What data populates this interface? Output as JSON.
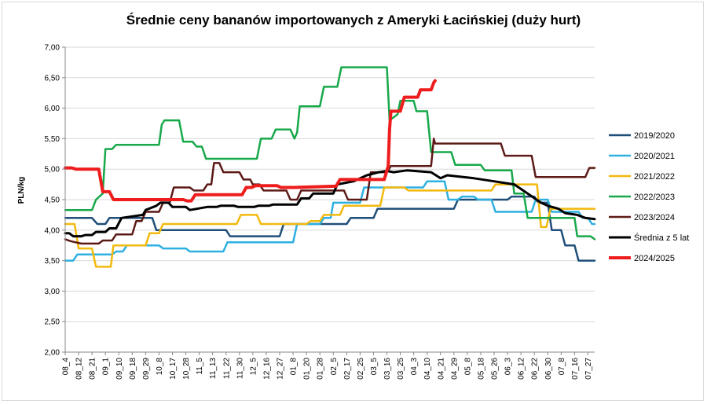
{
  "chart_data": {
    "type": "line",
    "title": "Średnie ceny bananów importowanych z Ameryki Łacińskiej  (duży hurt)",
    "ylabel": "PLN/kg",
    "xlabel": "",
    "ylim": [
      2.0,
      7.0
    ],
    "y_ticks": [
      "2,00",
      "2,50",
      "3,00",
      "3,50",
      "4,00",
      "4,50",
      "5,00",
      "5,50",
      "6,00",
      "6,50",
      "7,00"
    ],
    "x_tick_labels": [
      "08_4",
      "08_12",
      "08_21",
      "09_1",
      "09_10",
      "09_18",
      "09_29",
      "10_8",
      "10_17",
      "10_28",
      "11_5",
      "11_13",
      "11_22",
      "11_30",
      "12_5",
      "12_16",
      "12_27",
      "01_8",
      "01_20",
      "01_28",
      "02_5",
      "02_17",
      "02_25",
      "03_5",
      "03_16",
      "03_25",
      "04_3",
      "04_10",
      "04_21",
      "04_29",
      "05_8",
      "05_18",
      "05_26",
      "06_3",
      "06_12",
      "06_22",
      "06_30",
      "07_8",
      "07_16",
      "07_27"
    ],
    "grid": true,
    "legend_position": "right",
    "series": [
      {
        "name": "2019/2020",
        "color": "#1f4e79",
        "stroke": 2.5,
        "points": [
          [
            0,
            4.2
          ],
          [
            2,
            4.2
          ],
          [
            2.4,
            4.1
          ],
          [
            3,
            4.1
          ],
          [
            3.3,
            4.2
          ],
          [
            6.5,
            4.2
          ],
          [
            6.8,
            4.0
          ],
          [
            12,
            4.0
          ],
          [
            12.3,
            3.9
          ],
          [
            16,
            3.9
          ],
          [
            16.3,
            4.1
          ],
          [
            21,
            4.1
          ],
          [
            21.3,
            4.2
          ],
          [
            23,
            4.2
          ],
          [
            23.3,
            4.35
          ],
          [
            29,
            4.35
          ],
          [
            29.3,
            4.5
          ],
          [
            33,
            4.5
          ],
          [
            33.3,
            4.55
          ],
          [
            35,
            4.55
          ],
          [
            35.3,
            4.45
          ],
          [
            36,
            4.45
          ],
          [
            36.3,
            4.0
          ],
          [
            37,
            4.0
          ],
          [
            37.3,
            3.75
          ],
          [
            38,
            3.75
          ],
          [
            38.3,
            3.5
          ],
          [
            39.5,
            3.5
          ]
        ]
      },
      {
        "name": "2020/2021",
        "color": "#2eb0e0",
        "stroke": 2.5,
        "points": [
          [
            0,
            3.5
          ],
          [
            0.6,
            3.5
          ],
          [
            0.9,
            3.6
          ],
          [
            3.5,
            3.6
          ],
          [
            3.8,
            3.65
          ],
          [
            4.3,
            3.65
          ],
          [
            4.6,
            3.75
          ],
          [
            7,
            3.75
          ],
          [
            7.3,
            3.7
          ],
          [
            9,
            3.7
          ],
          [
            9.3,
            3.65
          ],
          [
            11.8,
            3.65
          ],
          [
            12.1,
            3.8
          ],
          [
            17,
            3.8
          ],
          [
            17.3,
            4.1
          ],
          [
            19,
            4.1
          ],
          [
            19.3,
            4.2
          ],
          [
            19.8,
            4.2
          ],
          [
            20,
            4.45
          ],
          [
            22,
            4.45
          ],
          [
            22.3,
            4.7
          ],
          [
            26.7,
            4.7
          ],
          [
            27,
            4.8
          ],
          [
            28.3,
            4.8
          ],
          [
            28.6,
            4.5
          ],
          [
            29.3,
            4.5
          ],
          [
            29.6,
            4.55
          ],
          [
            30.5,
            4.55
          ],
          [
            30.8,
            4.5
          ],
          [
            31.8,
            4.5
          ],
          [
            32.1,
            4.3
          ],
          [
            34.8,
            4.3
          ],
          [
            35.1,
            4.5
          ],
          [
            36,
            4.5
          ],
          [
            36.3,
            4.3
          ],
          [
            38.3,
            4.3
          ],
          [
            38.6,
            4.2
          ],
          [
            39,
            4.2
          ],
          [
            39.3,
            4.1
          ],
          [
            39.5,
            4.1
          ]
        ]
      },
      {
        "name": "2021/2022",
        "color": "#f2b90e",
        "stroke": 2.5,
        "points": [
          [
            0,
            4.1
          ],
          [
            0.7,
            4.1
          ],
          [
            1,
            3.7
          ],
          [
            2,
            3.7
          ],
          [
            2.3,
            3.4
          ],
          [
            3.4,
            3.4
          ],
          [
            3.6,
            3.75
          ],
          [
            6,
            3.75
          ],
          [
            6.3,
            3.95
          ],
          [
            7,
            3.95
          ],
          [
            7.3,
            4.1
          ],
          [
            12.8,
            4.1
          ],
          [
            13.1,
            4.25
          ],
          [
            14.3,
            4.25
          ],
          [
            14.6,
            4.1
          ],
          [
            18,
            4.1
          ],
          [
            18.3,
            4.15
          ],
          [
            19,
            4.15
          ],
          [
            19.3,
            4.25
          ],
          [
            20.5,
            4.25
          ],
          [
            20.8,
            4.4
          ],
          [
            23.5,
            4.4
          ],
          [
            23.8,
            4.7
          ],
          [
            25.3,
            4.7
          ],
          [
            25.6,
            4.65
          ],
          [
            31.8,
            4.65
          ],
          [
            32.1,
            4.75
          ],
          [
            35.2,
            4.75
          ],
          [
            35.5,
            4.05
          ],
          [
            35.9,
            4.05
          ],
          [
            36.2,
            4.35
          ],
          [
            39.5,
            4.35
          ]
        ]
      },
      {
        "name": "2022/2023",
        "color": "#17a84a",
        "stroke": 2.5,
        "points": [
          [
            0,
            4.33
          ],
          [
            2,
            4.33
          ],
          [
            2.3,
            4.5
          ],
          [
            2.8,
            4.6
          ],
          [
            3,
            5.33
          ],
          [
            3.5,
            5.33
          ],
          [
            3.8,
            5.4
          ],
          [
            7,
            5.4
          ],
          [
            7.2,
            5.73
          ],
          [
            7.4,
            5.8
          ],
          [
            8.5,
            5.8
          ],
          [
            8.8,
            5.45
          ],
          [
            9.5,
            5.45
          ],
          [
            9.8,
            5.37
          ],
          [
            10.2,
            5.37
          ],
          [
            10.5,
            5.17
          ],
          [
            14.3,
            5.17
          ],
          [
            14.6,
            5.5
          ],
          [
            15.4,
            5.5
          ],
          [
            15.7,
            5.65
          ],
          [
            16.8,
            5.65
          ],
          [
            17.1,
            5.5
          ],
          [
            17.3,
            5.6
          ],
          [
            17.5,
            6.03
          ],
          [
            19,
            6.03
          ],
          [
            19.3,
            6.35
          ],
          [
            20.3,
            6.35
          ],
          [
            20.6,
            6.67
          ],
          [
            24,
            6.67
          ],
          [
            24.2,
            5.8
          ],
          [
            24.8,
            5.9
          ],
          [
            25,
            6.12
          ],
          [
            26,
            6.12
          ],
          [
            26.2,
            5.95
          ],
          [
            27,
            5.95
          ],
          [
            27.3,
            5.28
          ],
          [
            28.8,
            5.28
          ],
          [
            29.1,
            5.07
          ],
          [
            31,
            5.07
          ],
          [
            31.3,
            4.98
          ],
          [
            33.3,
            4.98
          ],
          [
            33.5,
            4.6
          ],
          [
            34.2,
            4.6
          ],
          [
            34.5,
            4.2
          ],
          [
            38,
            4.2
          ],
          [
            38.2,
            3.9
          ],
          [
            39.2,
            3.9
          ],
          [
            39.5,
            3.85
          ]
        ]
      },
      {
        "name": "2023/2024",
        "color": "#5c1a16",
        "stroke": 2.5,
        "points": [
          [
            0,
            3.85
          ],
          [
            0.4,
            3.82
          ],
          [
            1.2,
            3.78
          ],
          [
            2.5,
            3.78
          ],
          [
            2.8,
            3.83
          ],
          [
            3.5,
            3.83
          ],
          [
            3.8,
            3.93
          ],
          [
            5,
            3.93
          ],
          [
            5.3,
            4.15
          ],
          [
            5.7,
            4.15
          ],
          [
            6,
            4.3
          ],
          [
            7,
            4.3
          ],
          [
            7.3,
            4.45
          ],
          [
            7.8,
            4.45
          ],
          [
            8.1,
            4.7
          ],
          [
            9.3,
            4.7
          ],
          [
            9.6,
            4.65
          ],
          [
            10.3,
            4.65
          ],
          [
            10.6,
            4.75
          ],
          [
            10.9,
            4.75
          ],
          [
            11.1,
            5.1
          ],
          [
            11.5,
            5.1
          ],
          [
            11.8,
            4.95
          ],
          [
            13,
            4.95
          ],
          [
            13.3,
            4.83
          ],
          [
            13.8,
            4.83
          ],
          [
            14,
            4.75
          ],
          [
            14.5,
            4.75
          ],
          [
            14.8,
            4.65
          ],
          [
            16.5,
            4.65
          ],
          [
            16.8,
            4.5
          ],
          [
            17.3,
            4.5
          ],
          [
            17.6,
            4.65
          ],
          [
            20.8,
            4.65
          ],
          [
            21.1,
            4.5
          ],
          [
            22.5,
            4.5
          ],
          [
            22.8,
            4.95
          ],
          [
            24,
            4.95
          ],
          [
            24.3,
            5.05
          ],
          [
            27.3,
            5.05
          ],
          [
            27.5,
            5.5
          ],
          [
            27.6,
            5.42
          ],
          [
            32.5,
            5.42
          ],
          [
            32.8,
            5.22
          ],
          [
            34.8,
            5.22
          ],
          [
            35.1,
            4.87
          ],
          [
            38.8,
            4.87
          ],
          [
            39.1,
            5.02
          ],
          [
            39.5,
            5.02
          ]
        ]
      },
      {
        "name": "Średnia z 5 lat",
        "color": "#000000",
        "stroke": 3,
        "points": [
          [
            0,
            3.95
          ],
          [
            0.3,
            3.95
          ],
          [
            0.6,
            3.9
          ],
          [
            1.2,
            3.9
          ],
          [
            1.5,
            3.92
          ],
          [
            2,
            3.92
          ],
          [
            2.3,
            3.97
          ],
          [
            3,
            3.97
          ],
          [
            3.3,
            4.03
          ],
          [
            3.8,
            4.03
          ],
          [
            4.2,
            4.2
          ],
          [
            5.8,
            4.25
          ],
          [
            6,
            4.33
          ],
          [
            6.8,
            4.4
          ],
          [
            7.1,
            4.45
          ],
          [
            7.7,
            4.45
          ],
          [
            8,
            4.38
          ],
          [
            9,
            4.38
          ],
          [
            9.3,
            4.33
          ],
          [
            10.6,
            4.38
          ],
          [
            11.3,
            4.38
          ],
          [
            11.6,
            4.4
          ],
          [
            12.6,
            4.4
          ],
          [
            12.9,
            4.38
          ],
          [
            14.1,
            4.38
          ],
          [
            14.4,
            4.4
          ],
          [
            15.2,
            4.4
          ],
          [
            15.5,
            4.42
          ],
          [
            17.3,
            4.42
          ],
          [
            17.6,
            4.52
          ],
          [
            18.2,
            4.52
          ],
          [
            18.5,
            4.6
          ],
          [
            20,
            4.6
          ],
          [
            20.3,
            4.75
          ],
          [
            21.5,
            4.8
          ],
          [
            22.5,
            4.9
          ],
          [
            23.4,
            4.95
          ],
          [
            24,
            4.97
          ],
          [
            24.5,
            4.95
          ],
          [
            25.5,
            4.98
          ],
          [
            27.3,
            4.95
          ],
          [
            28,
            4.85
          ],
          [
            28.5,
            4.9
          ],
          [
            30.5,
            4.85
          ],
          [
            32,
            4.8
          ],
          [
            33.5,
            4.75
          ],
          [
            34.5,
            4.6
          ],
          [
            35.5,
            4.45
          ],
          [
            36,
            4.4
          ],
          [
            36.8,
            4.35
          ],
          [
            37.3,
            4.28
          ],
          [
            38.2,
            4.25
          ],
          [
            38.8,
            4.2
          ],
          [
            39.5,
            4.18
          ]
        ]
      },
      {
        "name": "2024/2025",
        "color": "#ee1c1c",
        "stroke": 4,
        "points": [
          [
            0,
            5.02
          ],
          [
            0.5,
            5.02
          ],
          [
            0.8,
            5.0
          ],
          [
            2.5,
            5.0
          ],
          [
            2.8,
            4.63
          ],
          [
            3.3,
            4.63
          ],
          [
            3.6,
            4.5
          ],
          [
            8.8,
            4.5
          ],
          [
            9.1,
            4.48
          ],
          [
            9.4,
            4.48
          ],
          [
            9.7,
            4.58
          ],
          [
            13.2,
            4.58
          ],
          [
            13.5,
            4.7
          ],
          [
            13.9,
            4.7
          ],
          [
            14.2,
            4.73
          ],
          [
            15.8,
            4.73
          ],
          [
            16.1,
            4.7
          ],
          [
            16.8,
            4.7
          ],
          [
            17.1,
            4.7
          ],
          [
            20.2,
            4.72
          ],
          [
            20.5,
            4.83
          ],
          [
            23.8,
            4.83
          ],
          [
            24.1,
            5.05
          ],
          [
            24.2,
            5.65
          ],
          [
            24.3,
            5.95
          ],
          [
            25,
            5.95
          ],
          [
            25.3,
            6.18
          ],
          [
            26.3,
            6.18
          ],
          [
            26.5,
            6.3
          ],
          [
            27.3,
            6.3
          ],
          [
            27.5,
            6.42
          ],
          [
            27.6,
            6.45
          ]
        ]
      }
    ]
  }
}
